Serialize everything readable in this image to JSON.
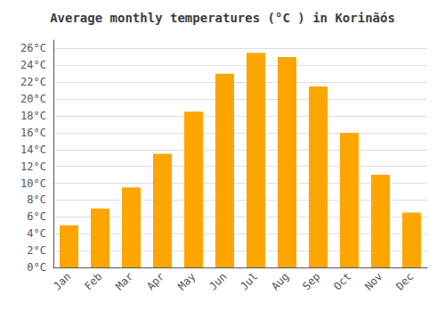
{
  "chart_data": {
    "type": "bar",
    "title": "Average monthly temperatures (°C ) in Korinãós",
    "categories": [
      "Jan",
      "Feb",
      "Mar",
      "Apr",
      "May",
      "Jun",
      "Jul",
      "Aug",
      "Sep",
      "Oct",
      "Nov",
      "Dec"
    ],
    "values": [
      5.0,
      7.0,
      9.5,
      13.5,
      18.5,
      23.0,
      25.5,
      25.0,
      21.5,
      16.0,
      11.0,
      6.5
    ],
    "color": "#FFA500",
    "ylim": [
      0,
      27
    ],
    "yticks": [
      {
        "value": 0,
        "label": "0°C"
      },
      {
        "value": 2,
        "label": "2°C"
      },
      {
        "value": 4,
        "label": "4°C"
      },
      {
        "value": 6,
        "label": "6°C"
      },
      {
        "value": 8,
        "label": "8°C"
      },
      {
        "value": 10,
        "label": "10°C"
      },
      {
        "value": 12,
        "label": "12°C"
      },
      {
        "value": 14,
        "label": "14°C"
      },
      {
        "value": 16,
        "label": "16°C"
      },
      {
        "value": 18,
        "label": "18°C"
      },
      {
        "value": 20,
        "label": "20°C"
      },
      {
        "value": 22,
        "label": "22°C"
      },
      {
        "value": 24,
        "label": "24°C"
      },
      {
        "value": 26,
        "label": "26°C"
      }
    ],
    "grid": true
  }
}
